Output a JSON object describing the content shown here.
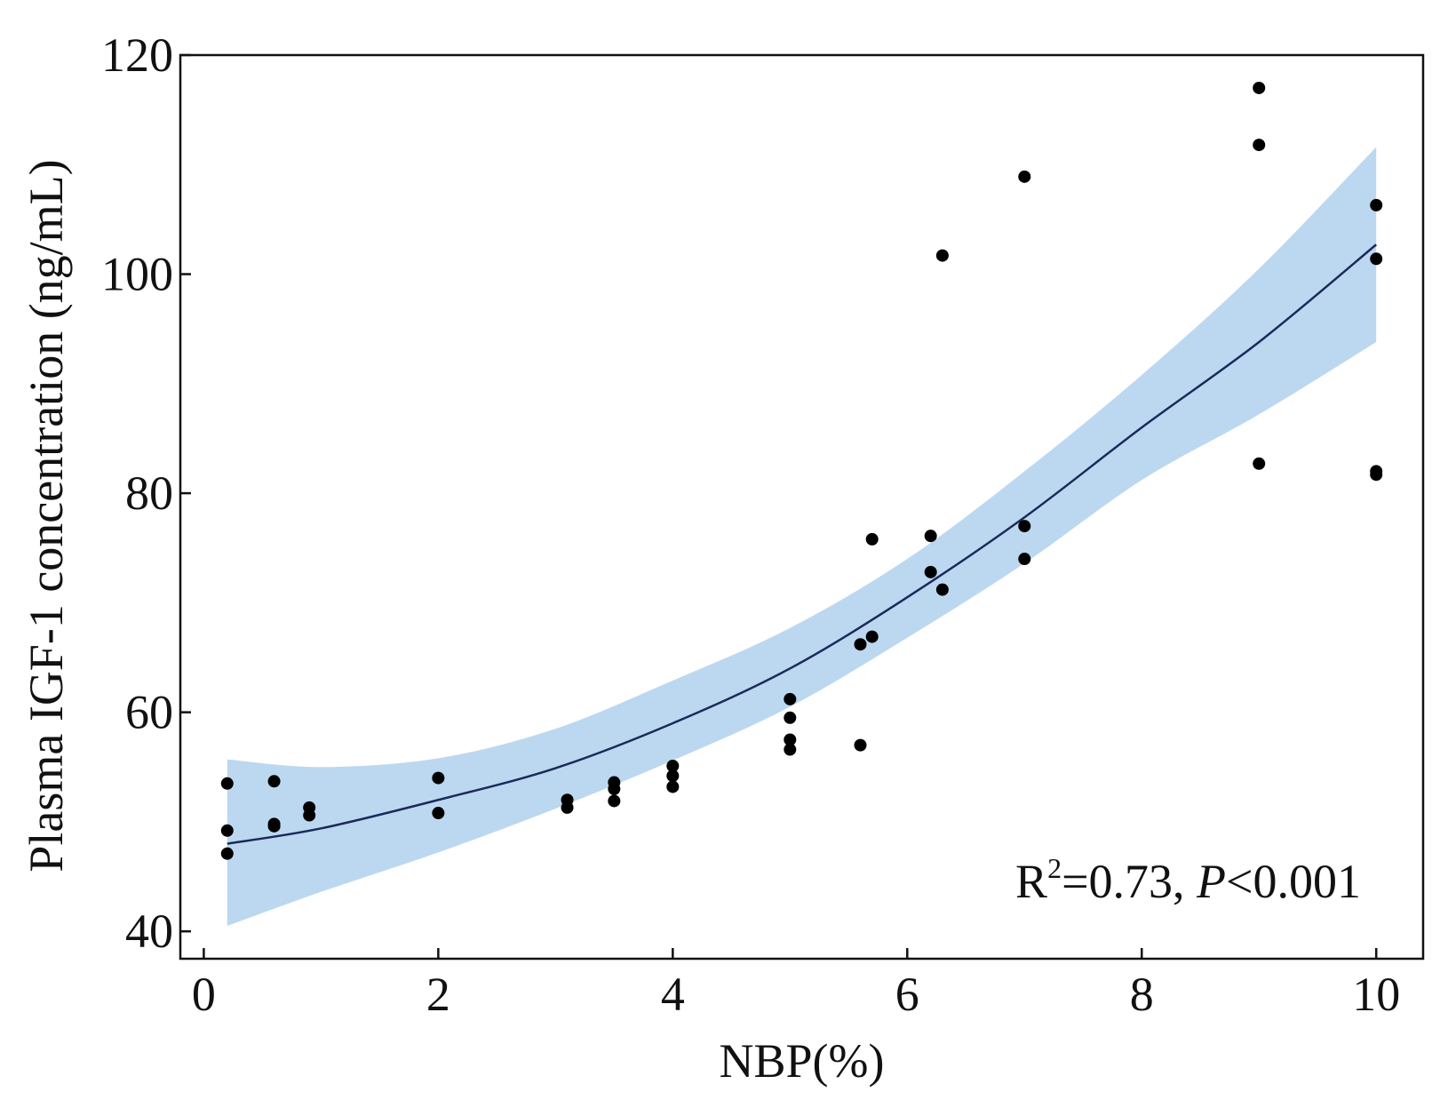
{
  "chart_data": {
    "type": "scatter",
    "title": "",
    "xlabel": "NBP(%)",
    "ylabel": "Plasma IGF-1 concentration (ng/mL)",
    "xlim": [
      -0.2,
      10.4
    ],
    "ylim": [
      37.5,
      120
    ],
    "xticks": [
      0,
      2,
      4,
      6,
      8,
      10
    ],
    "yticks": [
      40,
      60,
      80,
      100,
      120
    ],
    "grid": false,
    "points": [
      {
        "x": 0.2,
        "y": 53.5
      },
      {
        "x": 0.2,
        "y": 49.2
      },
      {
        "x": 0.2,
        "y": 47.1
      },
      {
        "x": 0.6,
        "y": 53.7
      },
      {
        "x": 0.6,
        "y": 49.8
      },
      {
        "x": 0.6,
        "y": 49.6
      },
      {
        "x": 0.9,
        "y": 51.3
      },
      {
        "x": 0.9,
        "y": 50.6
      },
      {
        "x": 2.0,
        "y": 54.0
      },
      {
        "x": 2.0,
        "y": 50.8
      },
      {
        "x": 3.1,
        "y": 52.0
      },
      {
        "x": 3.1,
        "y": 51.3
      },
      {
        "x": 3.5,
        "y": 53.6
      },
      {
        "x": 3.5,
        "y": 53.0
      },
      {
        "x": 3.5,
        "y": 51.9
      },
      {
        "x": 4.0,
        "y": 55.1
      },
      {
        "x": 4.0,
        "y": 54.2
      },
      {
        "x": 4.0,
        "y": 53.2
      },
      {
        "x": 5.0,
        "y": 61.2
      },
      {
        "x": 5.0,
        "y": 59.5
      },
      {
        "x": 5.0,
        "y": 57.5
      },
      {
        "x": 5.0,
        "y": 56.6
      },
      {
        "x": 5.6,
        "y": 66.2
      },
      {
        "x": 5.6,
        "y": 57.0
      },
      {
        "x": 5.7,
        "y": 75.8
      },
      {
        "x": 5.7,
        "y": 66.9
      },
      {
        "x": 6.2,
        "y": 76.1
      },
      {
        "x": 6.2,
        "y": 72.8
      },
      {
        "x": 6.3,
        "y": 101.7
      },
      {
        "x": 6.3,
        "y": 71.2
      },
      {
        "x": 7.0,
        "y": 108.9
      },
      {
        "x": 7.0,
        "y": 77.0
      },
      {
        "x": 7.0,
        "y": 74.0
      },
      {
        "x": 9.0,
        "y": 117.0
      },
      {
        "x": 9.0,
        "y": 111.8
      },
      {
        "x": 9.0,
        "y": 82.7
      },
      {
        "x": 10.0,
        "y": 106.3
      },
      {
        "x": 10.0,
        "y": 101.4
      },
      {
        "x": 10.0,
        "y": 82.0
      },
      {
        "x": 10.0,
        "y": 81.7
      }
    ],
    "fit": {
      "model": "quadratic",
      "x_range": [
        0.2,
        10.0
      ],
      "curve": [
        {
          "x": 0.2,
          "y": 48.0
        },
        {
          "x": 1.0,
          "y": 49.4
        },
        {
          "x": 2.0,
          "y": 52.0
        },
        {
          "x": 3.0,
          "y": 54.9
        },
        {
          "x": 4.0,
          "y": 59.0
        },
        {
          "x": 5.0,
          "y": 64.0
        },
        {
          "x": 6.0,
          "y": 70.5
        },
        {
          "x": 7.0,
          "y": 77.8
        },
        {
          "x": 8.0,
          "y": 86.0
        },
        {
          "x": 9.0,
          "y": 93.8
        },
        {
          "x": 10.0,
          "y": 102.7
        }
      ],
      "ci_upper": [
        {
          "x": 0.2,
          "y": 55.7
        },
        {
          "x": 1.0,
          "y": 55.0
        },
        {
          "x": 2.0,
          "y": 55.8
        },
        {
          "x": 3.0,
          "y": 58.5
        },
        {
          "x": 4.0,
          "y": 62.9
        },
        {
          "x": 5.0,
          "y": 67.7
        },
        {
          "x": 6.0,
          "y": 74.0
        },
        {
          "x": 7.0,
          "y": 82.0
        },
        {
          "x": 8.0,
          "y": 90.8
        },
        {
          "x": 9.0,
          "y": 100.5
        },
        {
          "x": 10.0,
          "y": 111.6
        }
      ],
      "ci_lower": [
        {
          "x": 0.2,
          "y": 40.5
        },
        {
          "x": 1.0,
          "y": 43.6
        },
        {
          "x": 2.0,
          "y": 47.2
        },
        {
          "x": 3.0,
          "y": 51.2
        },
        {
          "x": 4.0,
          "y": 55.6
        },
        {
          "x": 5.0,
          "y": 60.5
        },
        {
          "x": 6.0,
          "y": 66.8
        },
        {
          "x": 7.0,
          "y": 73.6
        },
        {
          "x": 8.0,
          "y": 81.2
        },
        {
          "x": 9.0,
          "y": 87.2
        },
        {
          "x": 10.0,
          "y": 93.8
        }
      ]
    },
    "annotation": {
      "r_label": "R",
      "r_superscript": "2",
      "r_value": "=0.73, ",
      "p_label": "P",
      "p_value": "<0.001"
    },
    "colors": {
      "points": "#000000",
      "curve": "#1a2a5a",
      "ci_band": "#bcd8f0",
      "axes": "#111111"
    }
  }
}
